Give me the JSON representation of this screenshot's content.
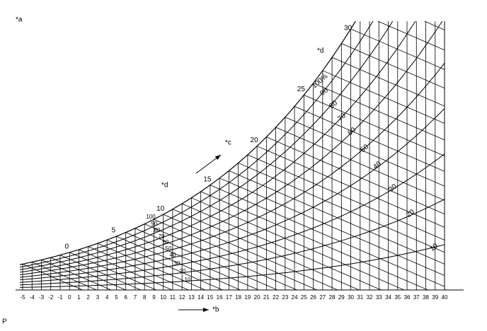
{
  "labels": {
    "a": "*a",
    "b": "*b",
    "c": "*c",
    "d_left": "*d",
    "d_right": "*d",
    "p": "P"
  },
  "x_axis": {
    "ticks": [
      -5,
      -4,
      -3,
      -2,
      -1,
      0,
      1,
      2,
      3,
      4,
      5,
      6,
      7,
      8,
      9,
      10,
      11,
      12,
      13,
      14,
      15,
      16,
      17,
      18,
      19,
      20,
      21,
      22,
      23,
      24,
      25,
      26,
      27,
      28,
      29,
      30,
      31,
      32,
      33,
      34,
      35,
      36,
      37,
      38,
      39,
      40
    ]
  },
  "saturation_labels": [
    0,
    5,
    10,
    15,
    20,
    25,
    30
  ],
  "rh_curves": [
    {
      "value": 100,
      "label": "100%"
    },
    90,
    80,
    70,
    60,
    50,
    40,
    30,
    20,
    10
  ]
}
